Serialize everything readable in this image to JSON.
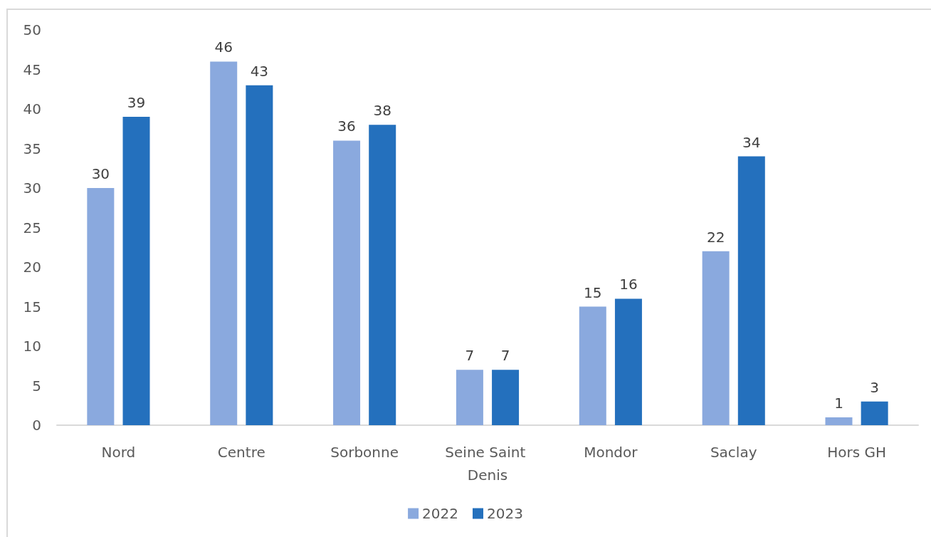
{
  "chart_data": {
    "type": "bar",
    "categories": [
      "Nord",
      "Centre",
      "Sorbonne",
      "Seine Saint Denis",
      "Mondor",
      "Saclay",
      "Hors GH"
    ],
    "series": [
      {
        "name": "2022",
        "color": "#8aa9de",
        "values": [
          30,
          46,
          36,
          7,
          15,
          22,
          1
        ]
      },
      {
        "name": "2023",
        "color": "#2470bd",
        "values": [
          39,
          43,
          38,
          7,
          16,
          34,
          3
        ]
      }
    ],
    "ylim": [
      0,
      50
    ],
    "yticks": [
      0,
      5,
      10,
      15,
      20,
      25,
      30,
      35,
      40,
      45,
      50
    ],
    "grid": false,
    "legend": "bottom",
    "data_labels": true
  }
}
